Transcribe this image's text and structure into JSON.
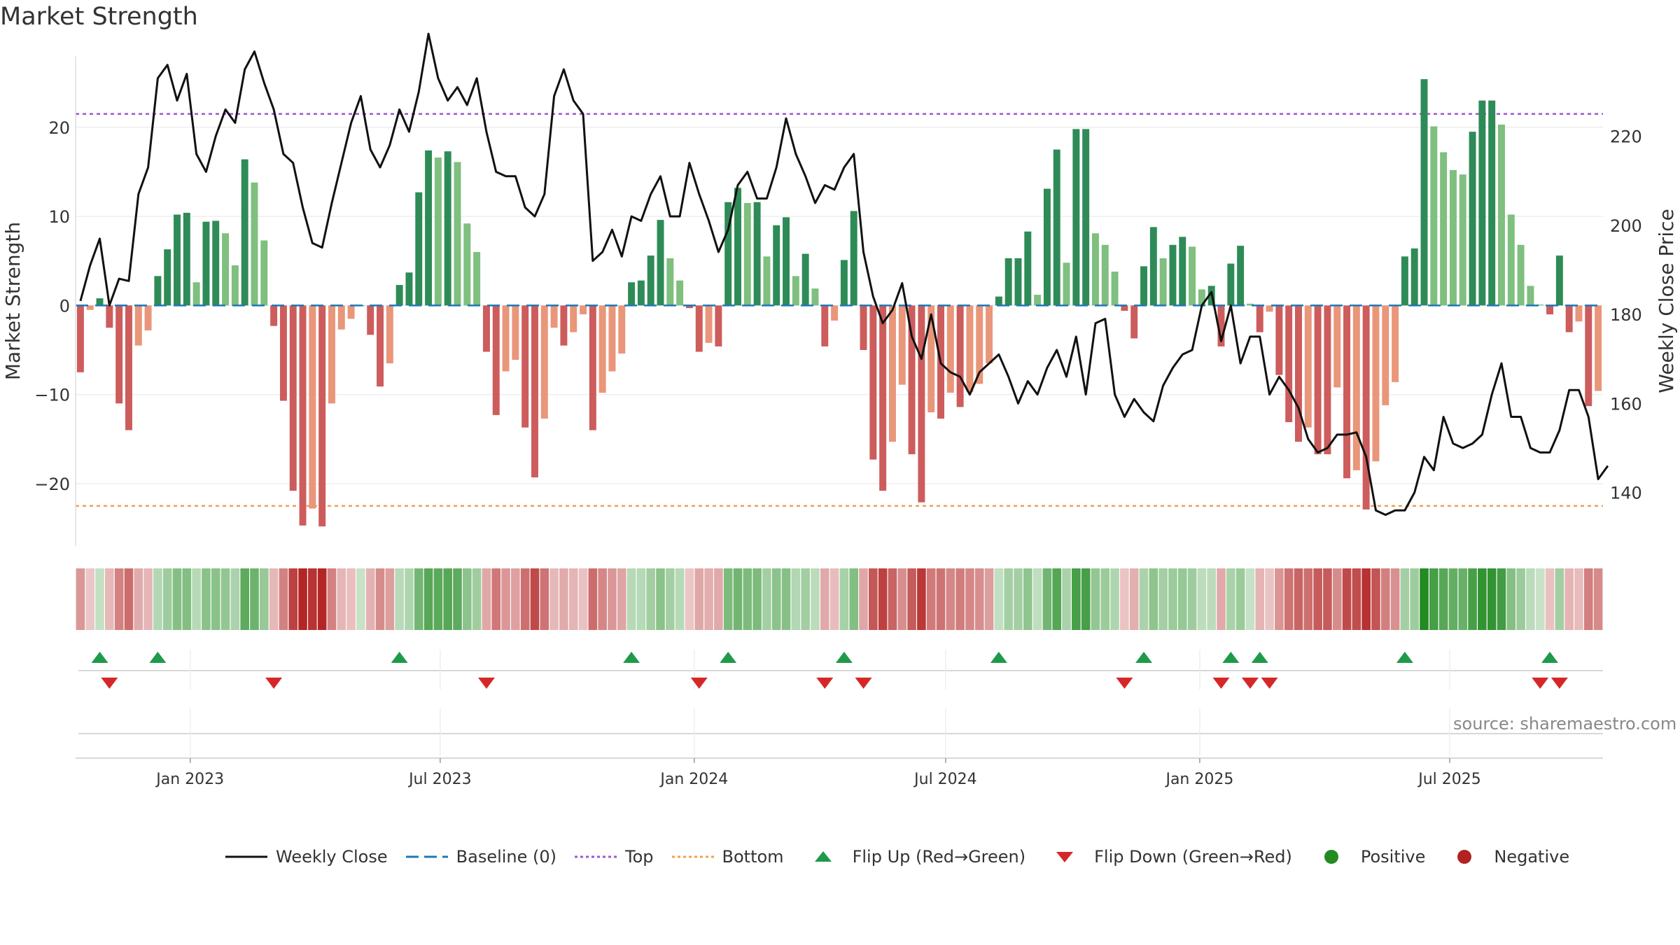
{
  "title": "Market Strength",
  "source": "source: sharemaestro.com",
  "colors": {
    "green_dark": "#2e8b57",
    "green_light": "#7fbf7f",
    "red_dark": "#cd5c5c",
    "red_light": "#e9967a",
    "line": "#111111",
    "top": "#9b59d0",
    "bottom": "#f0a050",
    "baseline": "#1f77b4",
    "flip_up": "#1f9a4a",
    "flip_down": "#d62728",
    "positive": "#228b22",
    "negative": "#b22222"
  },
  "chart_data": {
    "type": "bar",
    "title": "Market Strength",
    "ylabel": "Market Strength",
    "y2label": "Weekly Close Price",
    "ylim": [
      -27,
      28
    ],
    "y2lim": [
      128,
      238
    ],
    "yticks": [
      -20,
      -10,
      0,
      10,
      20
    ],
    "y2ticks": [
      140,
      160,
      180,
      200,
      220
    ],
    "top_level": 21.5,
    "bottom_level": -22.5,
    "baseline": 0,
    "x_start": "2022-10-10",
    "x_end": "2025-10-20",
    "x_ticks": [
      "Jan 2023",
      "Jul 2023",
      "Jan 2024",
      "Jul 2024",
      "Jan 2025",
      "Jul 2025"
    ],
    "x_tick_dates": [
      "2023-01-01",
      "2023-07-01",
      "2024-01-01",
      "2024-07-01",
      "2025-01-01",
      "2025-07-01"
    ],
    "strength": [
      -7.5,
      -0.5,
      0.8,
      -2.5,
      -11,
      -14,
      -4.5,
      -2.8,
      3.3,
      6.3,
      10.2,
      10.4,
      2.6,
      9.4,
      9.5,
      8.1,
      4.5,
      16.4,
      13.8,
      7.3,
      -2.3,
      -10.7,
      -20.8,
      -24.7,
      -22.8,
      -24.8,
      -11,
      -2.7,
      -1.5,
      0,
      -3.3,
      -9.1,
      -6.5,
      2.3,
      3.7,
      12.7,
      17.4,
      16.6,
      17.3,
      16.1,
      9.2,
      6,
      -5.2,
      -12.3,
      -7.4,
      -6.1,
      -13.7,
      -19.3,
      -12.7,
      -2.5,
      -4.5,
      -3,
      -1,
      -14,
      -9.8,
      -7.4,
      -5.4,
      2.6,
      2.8,
      5.6,
      9.6,
      5.3,
      2.8,
      -0.3,
      -5.2,
      -4.2,
      -4.6,
      11.6,
      13.2,
      11.5,
      11.6,
      5.5,
      9,
      9.9,
      3.3,
      5.8,
      1.9,
      -4.6,
      -1.7,
      5.1,
      10.6,
      -5,
      -17.3,
      -20.8,
      -15.3,
      -8.9,
      -16.7,
      -22.1,
      -12,
      -12.7,
      -9.8,
      -11.4,
      -9.7,
      -8.8,
      -6.5,
      1,
      5.3,
      5.3,
      8.3,
      1.2,
      13.1,
      17.5,
      4.8,
      19.8,
      19.8,
      8.1,
      6.8,
      3.8,
      -0.6,
      -3.7,
      4.4,
      8.8,
      5.3,
      6.8,
      7.7,
      6.6,
      1.8,
      2.2,
      -4.6,
      4.7,
      6.7,
      0.2,
      -3,
      -0.7,
      -7.8,
      -13.1,
      -15.3,
      -13.7,
      -16.7,
      -16.7,
      -9.2,
      -19.4,
      -18.5,
      -22.9,
      -17.5,
      -11.2,
      -8.6,
      5.5,
      6.4,
      25.4,
      20.1,
      17.2,
      15.2,
      14.7,
      19.5,
      23,
      23,
      20.3,
      10.2,
      6.8,
      2.2,
      0.1,
      -1,
      5.6,
      -3,
      -1.8,
      -11.3,
      -9.6
    ],
    "close": [
      183,
      191,
      197,
      182,
      188,
      187.5,
      207,
      213,
      233,
      236,
      228,
      234,
      216,
      212,
      220,
      226,
      223,
      235,
      239,
      232,
      226,
      216,
      214,
      204,
      196,
      195,
      205,
      214,
      223,
      229,
      217,
      213,
      218,
      226,
      221,
      230,
      243,
      233,
      228,
      231,
      227,
      233,
      221,
      212,
      211,
      211,
      204,
      202,
      207,
      229,
      235,
      228,
      225,
      192,
      194,
      199,
      193,
      202,
      201,
      207,
      211,
      202,
      202,
      214,
      207,
      201,
      194,
      199,
      209,
      212,
      206,
      206,
      213,
      224,
      216,
      211,
      205,
      209,
      208,
      213,
      216,
      194,
      184,
      178,
      181,
      187,
      175,
      170,
      180,
      169,
      167,
      166,
      162,
      167,
      169,
      171,
      166,
      160,
      165,
      162,
      168,
      172,
      166,
      175,
      162,
      178,
      179,
      162,
      157,
      161,
      158,
      156,
      164,
      168,
      171,
      172,
      182,
      185,
      174,
      182,
      169,
      175,
      175,
      162,
      166,
      163,
      159,
      152,
      149,
      150,
      153,
      153,
      153.5,
      148,
      136,
      135,
      136,
      136,
      140,
      148,
      145,
      157,
      151,
      150,
      151,
      153,
      162,
      169,
      157,
      157,
      150,
      149,
      149,
      154,
      163,
      163,
      157,
      143,
      146
    ],
    "flip_up_idx": [
      2,
      8,
      33,
      57,
      67,
      79,
      95,
      110,
      119,
      122,
      137,
      152
    ],
    "flip_down_idx": [
      3,
      20,
      42,
      64,
      77,
      81,
      108,
      118,
      121,
      123,
      151,
      153
    ]
  },
  "legend": [
    {
      "label": "Weekly Close",
      "kind": "line"
    },
    {
      "label": "Baseline (0)",
      "kind": "dash"
    },
    {
      "label": "Top",
      "kind": "dot-top"
    },
    {
      "label": "Bottom",
      "kind": "dot-bottom"
    },
    {
      "label": "Flip Up (Red→Green)",
      "kind": "tri-up"
    },
    {
      "label": "Flip Down (Green→Red)",
      "kind": "tri-down"
    },
    {
      "label": "Positive",
      "kind": "circle-pos"
    },
    {
      "label": "Negative",
      "kind": "circle-neg"
    }
  ]
}
